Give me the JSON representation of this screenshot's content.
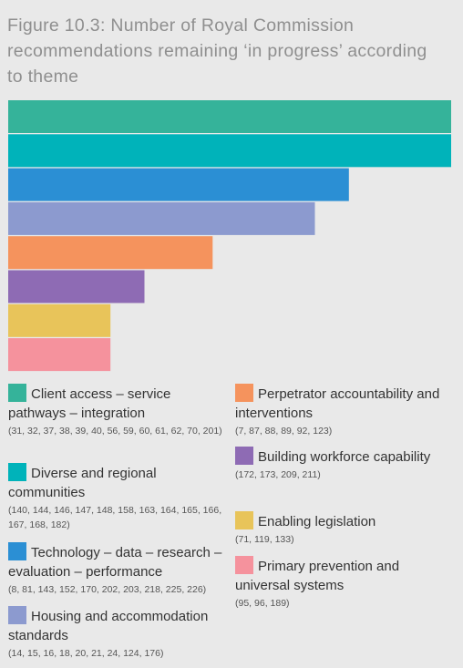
{
  "chart_data": {
    "type": "bar",
    "orientation": "horizontal",
    "title": "Figure 10.3: Number of Royal Commission recommendations remaining ‘in progress’ according to theme",
    "grid": false,
    "legend": "bottom",
    "categories": [
      "Client access – service pathways – integration",
      "Diverse and regional communities",
      "Technology – data – research – evaluation – performance",
      "Housing and accommodation standards",
      "Perpetrator accountability and interventions",
      "Building workforce capability",
      "Enabling legislation",
      "Primary prevention and universal systems"
    ],
    "values": [
      13,
      13,
      10,
      9,
      6,
      4,
      3,
      3
    ],
    "colors": [
      "#35b39a",
      "#00b3ba",
      "#2b8fd4",
      "#8c9acf",
      "#f5935d",
      "#8e6bb4",
      "#e8c45a",
      "#f5929d"
    ],
    "codes": [
      "(31, 32, 37, 38, 39, 40, 56, 59, 60, 61, 62, 70, 201)",
      "(140, 144, 146, 147, 148, 158, 163, 164, 165, 166, 167, 168, 182)",
      "(8, 81, 143, 152, 170, 202, 203, 218, 225, 226)",
      "(14, 15, 16, 18, 20, 21, 24, 124, 176)",
      "(7, 87, 88, 89, 92, 123)",
      "(172, 173, 209, 211)",
      "(71, 119, 133)",
      "(95, 96, 189)"
    ]
  }
}
